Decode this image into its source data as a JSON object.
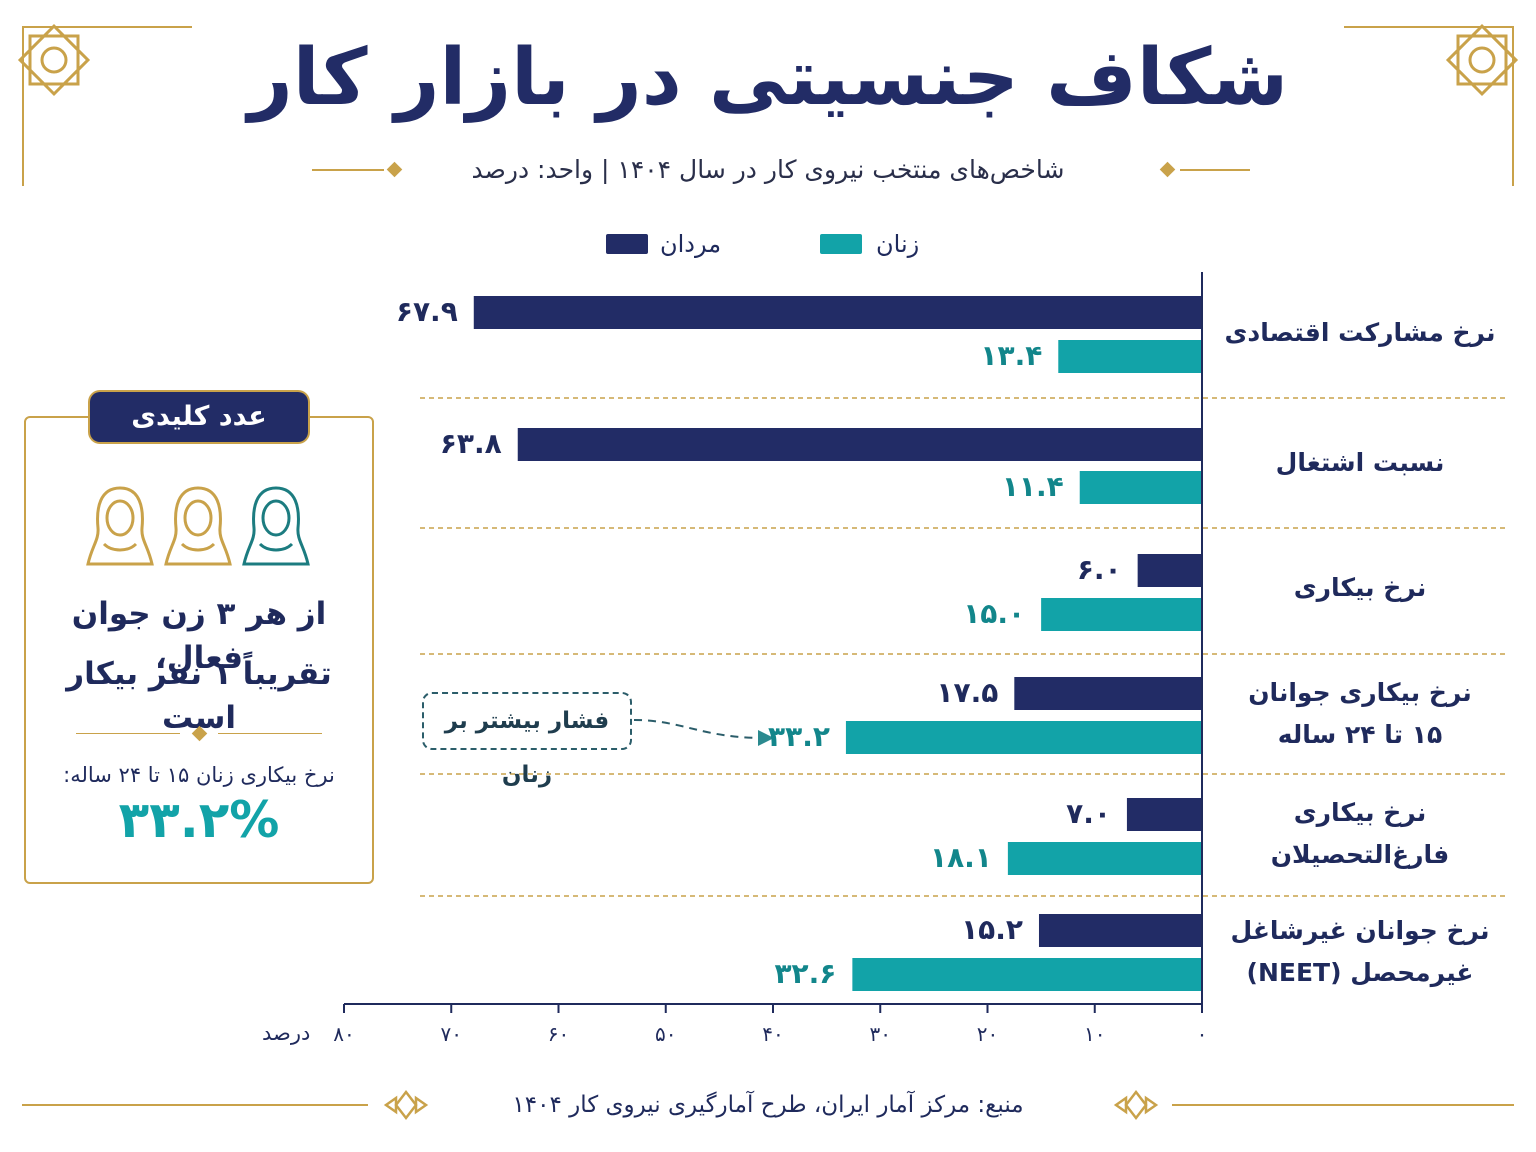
{
  "title": "شکاف جنسیتی در بازار کار",
  "subtitle": "شاخص‌های منتخب نیروی کار در سال ۱۴۰۴ | واحد: درصد",
  "source": "منبع: مرکز آمار ایران، طرح آمارگیری نیروی کار ۱۴۰۴",
  "colors": {
    "men": "#222c66",
    "women": "#12a3a8",
    "gold": "#c9a24a"
  },
  "chart_data": {
    "type": "bar",
    "orientation": "horizontal",
    "categories": [
      [
        "نرخ مشارکت اقتصادی"
      ],
      [
        "نسبت اشتغال"
      ],
      [
        "نرخ بیکاری"
      ],
      [
        "نرخ بیکاری جوانان",
        "۱۵ تا ۲۴ ساله"
      ],
      [
        "نرخ بیکاری",
        "فارغ‌التحصیلان"
      ],
      [
        "نرخ جوانان غیرشاغل",
        "غیرمحصل (NEET)"
      ]
    ],
    "series": [
      {
        "name": "مردان",
        "values": [
          67.9,
          63.8,
          6.0,
          17.5,
          7.0,
          15.2
        ],
        "labels": [
          "۶۷.۹",
          "۶۳.۸",
          "۶.۰",
          "۱۷.۵",
          "۷.۰",
          "۱۵.۲"
        ]
      },
      {
        "name": "زنان",
        "values": [
          13.4,
          11.4,
          15.0,
          33.2,
          18.1,
          32.6
        ],
        "labels": [
          "۱۳.۴",
          "۱۱.۴",
          "۱۵.۰",
          "۳۳.۲",
          "۱۸.۱",
          "۳۲.۶"
        ]
      }
    ],
    "xlim": [
      0,
      80
    ],
    "xticks": [
      0,
      10,
      20,
      30,
      40,
      50,
      60,
      70,
      80
    ],
    "xtick_labels": [
      "۰",
      "۱۰",
      "۲۰",
      "۳۰",
      "۴۰",
      "۵۰",
      "۶۰",
      "۷۰",
      "۸۰"
    ],
    "xlabel": "درصد",
    "legend_position": "top-center",
    "annotation": "فشار بیشتر بر زنان"
  },
  "key_box": {
    "heading": "عدد کلیدی",
    "line1": "از هر ۳ زن جوان فعال،",
    "line2": "تقریباً ۱ نفر بیکار است",
    "caption": "نرخ بیکاری زنان ۱۵ تا ۲۴ ساله:",
    "big_value": "۳۳.۲%"
  }
}
